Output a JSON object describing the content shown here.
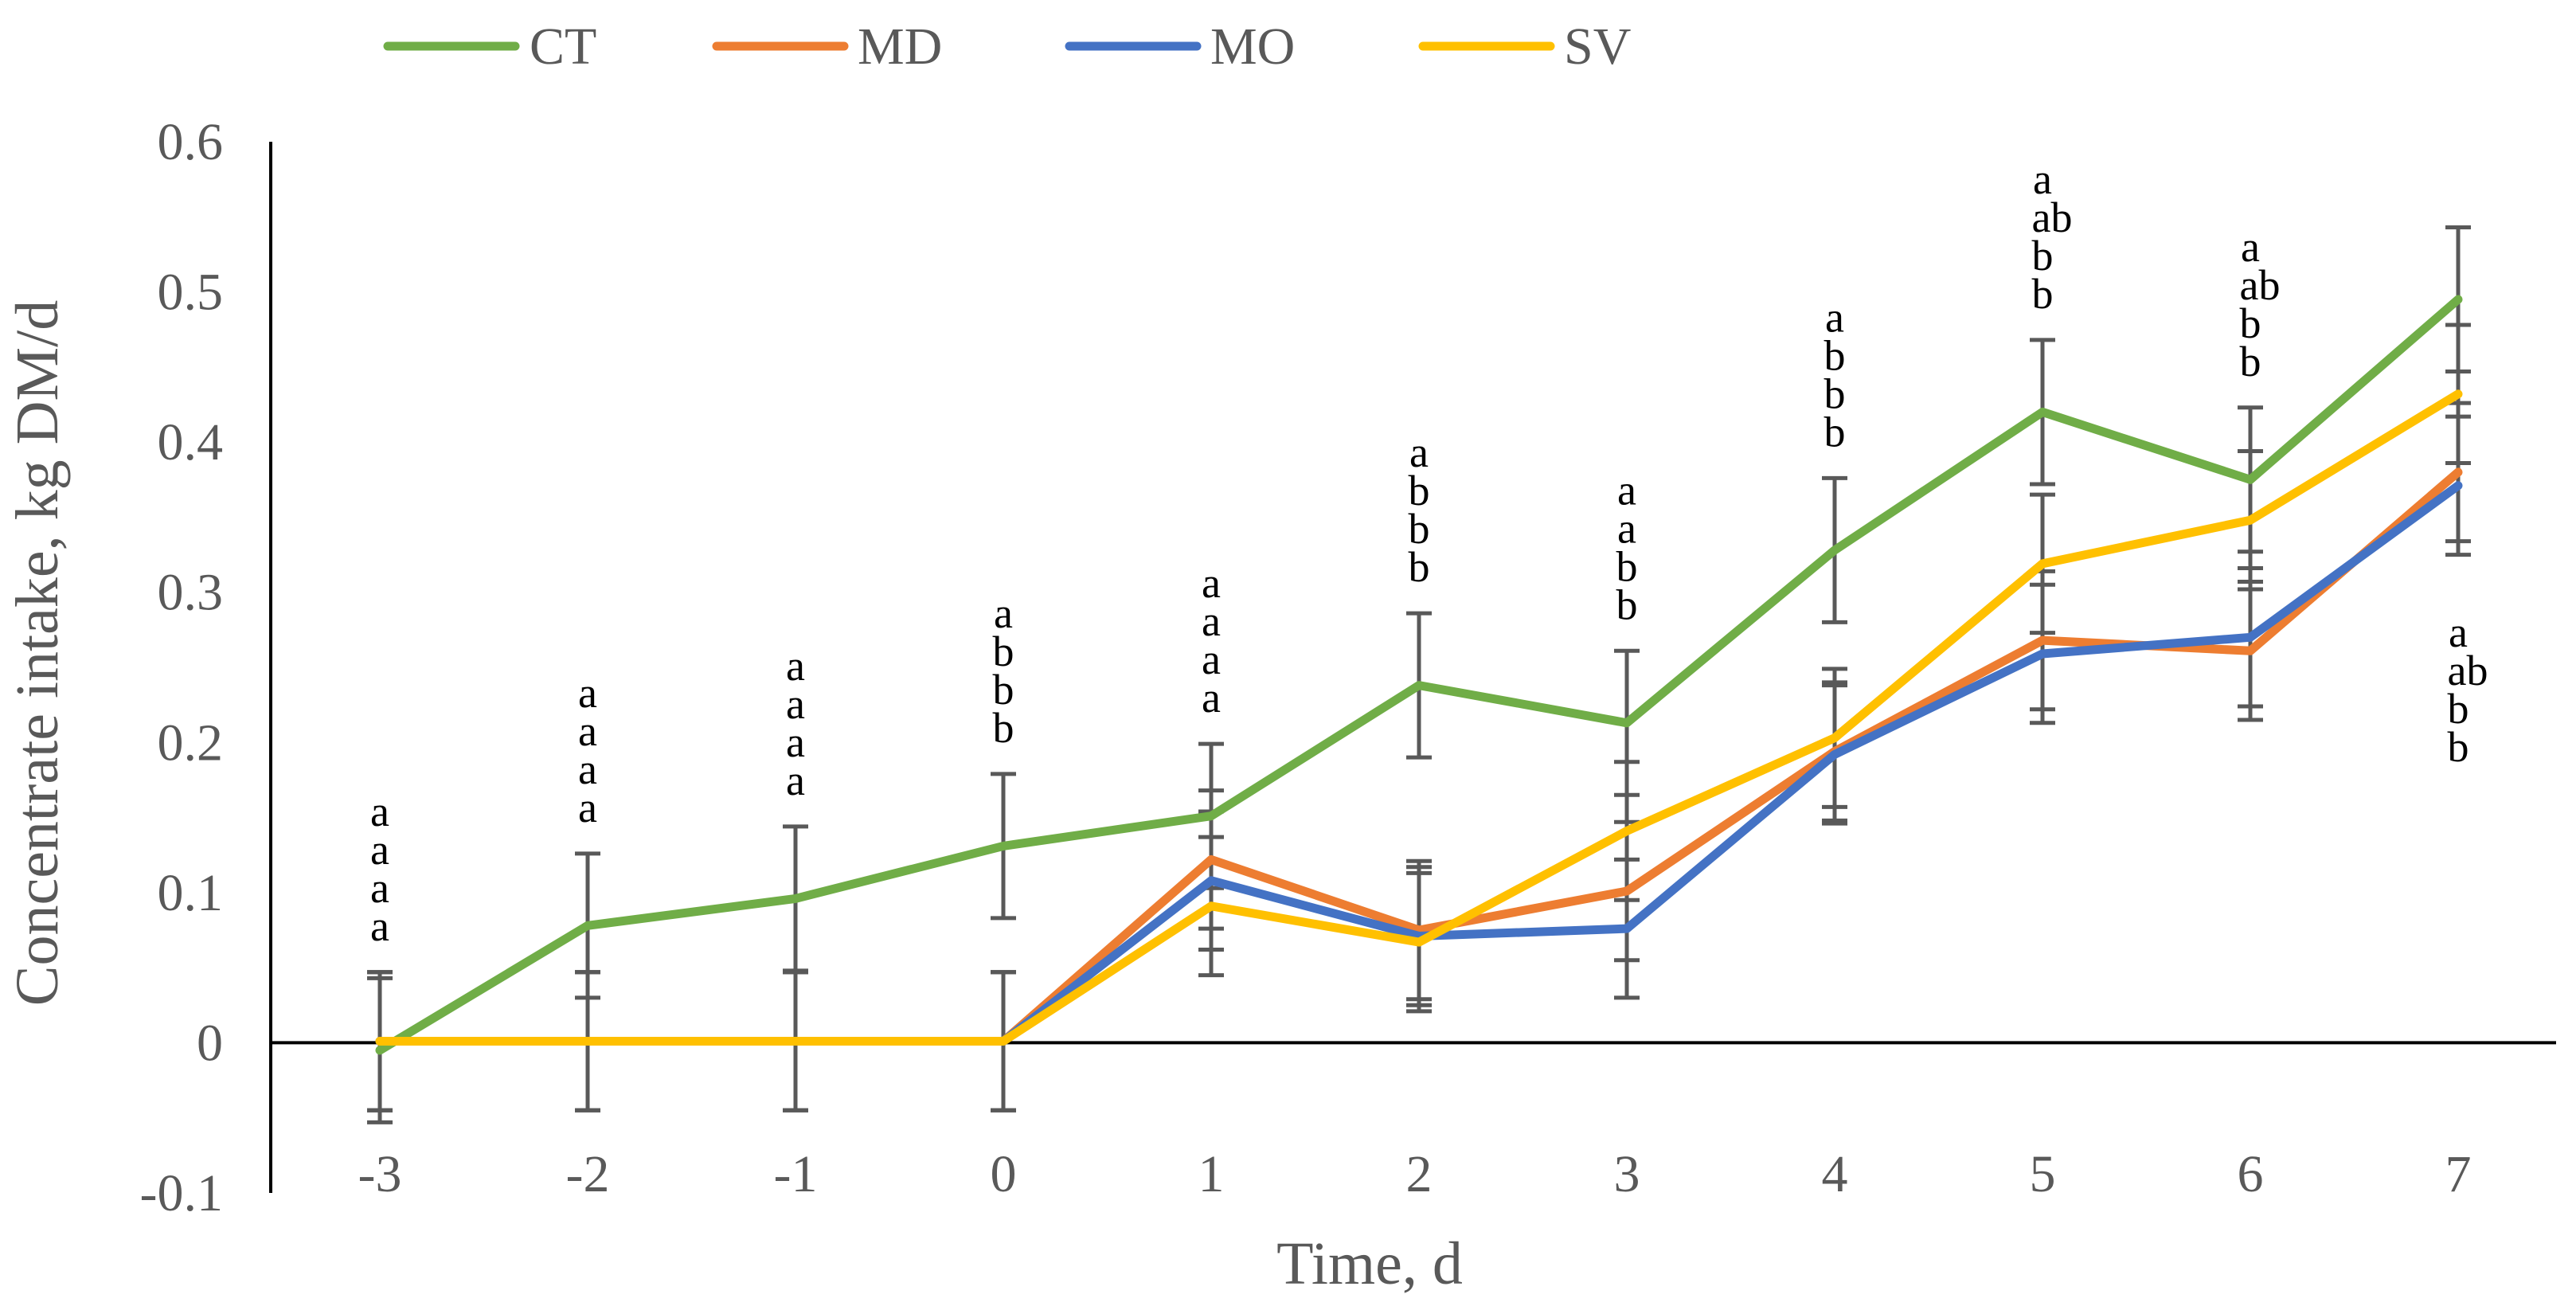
{
  "chart_data": {
    "type": "line",
    "title": "",
    "xlabel": "Time, d",
    "ylabel": "Concentrate intake, kg DM/d",
    "x": [
      "-3",
      "-2",
      "-1",
      "0",
      "1",
      "2",
      "3",
      "4",
      "5",
      "6",
      "7"
    ],
    "y_ticks": [
      "0.6",
      "0.5",
      "0.4",
      "0.3",
      "0.2",
      "0.1",
      "0",
      "-0.1"
    ],
    "ylim": [
      -0.1,
      0.6
    ],
    "legend_position": "top",
    "series": [
      {
        "name": "CT",
        "color": "#70AD47",
        "values": [
          -0.005,
          0.078,
          0.096,
          0.131,
          0.151,
          0.238,
          0.213,
          0.328,
          0.42,
          0.375,
          0.495
        ],
        "error": [
          0.048,
          0.048,
          0.048,
          0.048,
          0.048,
          0.048,
          0.048,
          0.048,
          0.048,
          0.048,
          0.048
        ]
      },
      {
        "name": "MD",
        "color": "#ED7D31",
        "values": [
          0.001,
          0.001,
          0.001,
          0.001,
          0.122,
          0.075,
          0.101,
          0.194,
          0.268,
          0.261,
          0.38
        ],
        "error": [
          0.046,
          0.046,
          0.046,
          0.046,
          0.046,
          0.046,
          0.046,
          0.046,
          0.046,
          0.046,
          0.046
        ]
      },
      {
        "name": "MO",
        "color": "#4472C4",
        "values": [
          0.001,
          0.001,
          0.001,
          0.001,
          0.108,
          0.071,
          0.076,
          0.192,
          0.259,
          0.27,
          0.371
        ],
        "error": [
          0.046,
          0.046,
          0.046,
          0.046,
          0.046,
          0.046,
          0.046,
          0.046,
          0.046,
          0.046,
          0.046
        ]
      },
      {
        "name": "SV",
        "color": "#FFC000",
        "values": [
          0.001,
          0.001,
          0.001,
          0.001,
          0.091,
          0.067,
          0.141,
          0.203,
          0.319,
          0.348,
          0.432
        ],
        "error": [
          0.046,
          0.046,
          0.046,
          0.046,
          0.046,
          0.046,
          0.046,
          0.046,
          0.046,
          0.046,
          0.046
        ]
      }
    ],
    "significance_letters": [
      [
        "a",
        "a",
        "a",
        "a"
      ],
      [
        "a",
        "a",
        "a",
        "a"
      ],
      [
        "a",
        "a",
        "a",
        "a"
      ],
      [
        "a",
        "b",
        "b",
        "b"
      ],
      [
        "a",
        "a",
        "a",
        "a"
      ],
      [
        "a",
        "b",
        "b",
        "b"
      ],
      [
        "a",
        "a",
        "b",
        "b"
      ],
      [
        "a",
        "b",
        "b",
        "b"
      ],
      [
        "a",
        "ab",
        "b",
        "b"
      ],
      [
        "a",
        "ab",
        "b",
        "b"
      ],
      [
        "a",
        "ab",
        "b",
        "b"
      ]
    ]
  }
}
